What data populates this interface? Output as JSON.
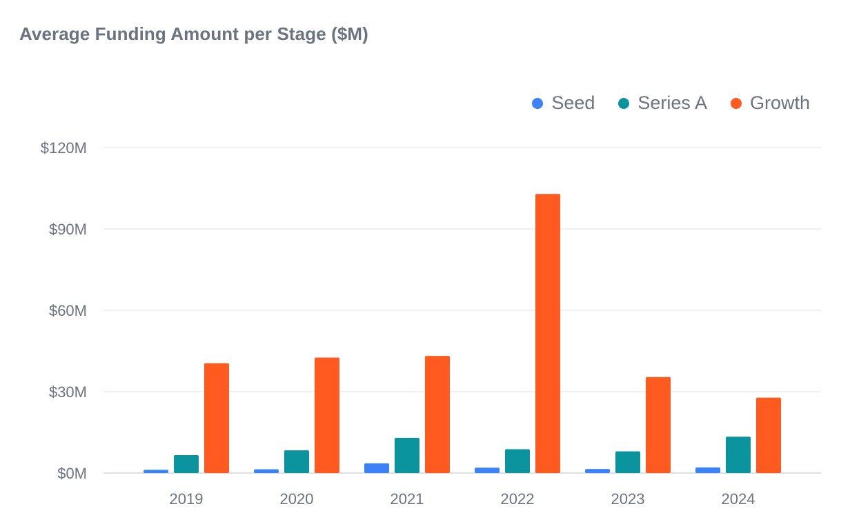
{
  "colors": {
    "seed": "#3b82f6",
    "series_a": "#0b949e",
    "growth": "#ff5a1f",
    "text": "#6b7280",
    "grid": "#e5e7eb"
  },
  "chart_data": {
    "type": "bar",
    "title": "Average Funding Amount per Stage ($M)",
    "xlabel": "",
    "ylabel": "",
    "categories": [
      "2019",
      "2020",
      "2021",
      "2022",
      "2023",
      "2024"
    ],
    "series": [
      {
        "name": "Seed",
        "color": "#3b82f6",
        "values": [
          1.2,
          1.4,
          3.6,
          2.0,
          1.5,
          2.1
        ]
      },
      {
        "name": "Series A",
        "color": "#0b949e",
        "values": [
          6.6,
          8.4,
          13.0,
          8.8,
          8.0,
          13.4
        ]
      },
      {
        "name": "Growth",
        "color": "#ff5a1f",
        "values": [
          40.5,
          42.6,
          43.2,
          102.9,
          35.4,
          27.8
        ]
      }
    ],
    "ylim": [
      0,
      120
    ],
    "yticks": [
      0,
      30,
      60,
      90,
      120
    ],
    "ytick_labels": [
      "$0M",
      "$30M",
      "$60M",
      "$90M",
      "$120M"
    ],
    "grid": true,
    "legend_position": "top-right"
  }
}
